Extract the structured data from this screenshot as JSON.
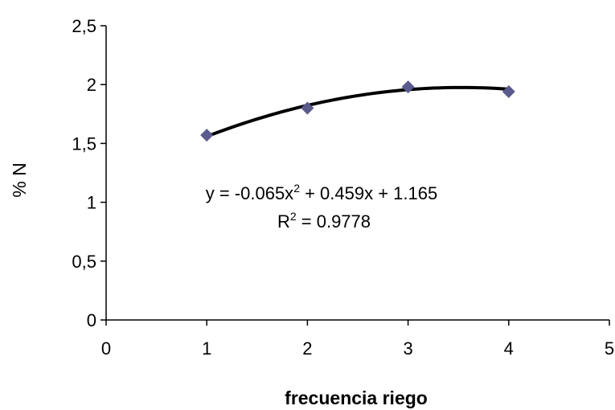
{
  "chart_data": {
    "type": "scatter",
    "title": "",
    "xlabel": "frecuencia riego",
    "ylabel": "% N",
    "xlim": [
      0,
      5
    ],
    "ylim": [
      0,
      2.5
    ],
    "x_ticks": [
      "0",
      "1",
      "2",
      "3",
      "4",
      "5"
    ],
    "y_ticks": [
      "0",
      "0,5",
      "1",
      "1,5",
      "2",
      "2,5"
    ],
    "grid": false,
    "legend": "none",
    "series": [
      {
        "x": [
          1,
          2,
          3,
          4
        ],
        "y": [
          1.57,
          1.8,
          1.98,
          1.94
        ],
        "marker": "diamond",
        "color": "#5a5a8c"
      }
    ],
    "trendline": {
      "type": "polynomial",
      "order": 2,
      "coefficients": [
        -0.065,
        0.459,
        1.165
      ],
      "x_range": [
        1,
        4
      ],
      "color": "#000000"
    },
    "annotations": {
      "equation_main": "y = -0.065x",
      "equation_exp": "2",
      "equation_rest": " + 0.459x + 1.165",
      "r2_label": "R",
      "r2_exp": "2",
      "r2_value": " = 0.9778"
    }
  }
}
